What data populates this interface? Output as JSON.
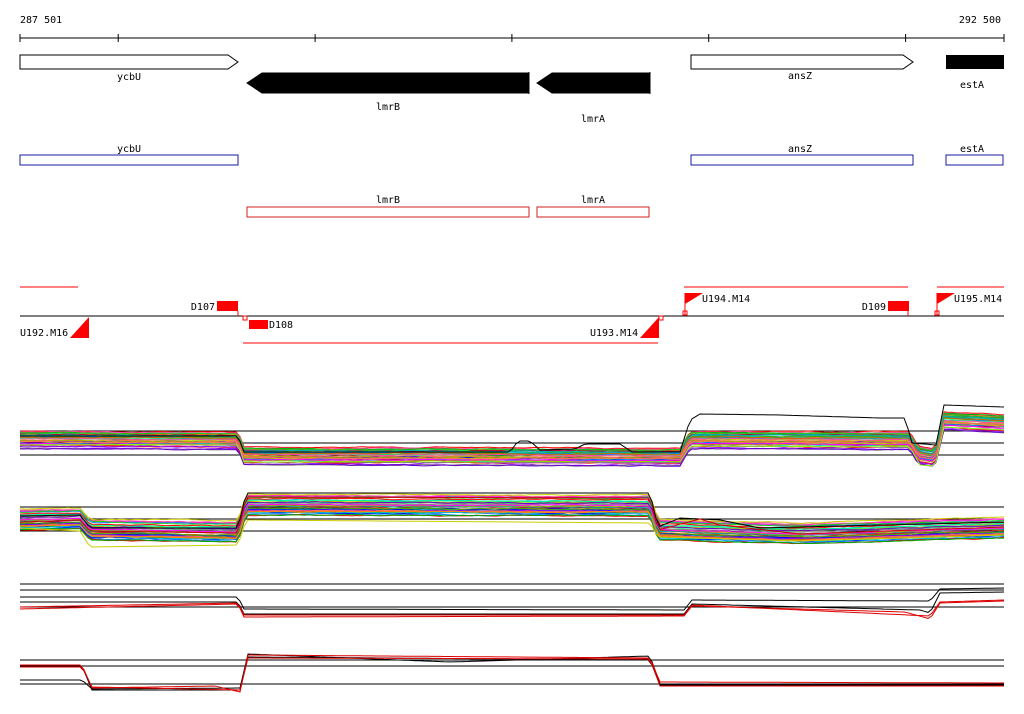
{
  "ruler": {
    "start_label": "287 501",
    "end_label": "292 500",
    "start": 287501,
    "end": 292500
  },
  "genes": [
    {
      "name": "ycbU",
      "start": 287501,
      "end": 288612,
      "strand": "+",
      "partial": false
    },
    {
      "name": "lmrB",
      "start": 288652,
      "end": 290082,
      "strand": "-",
      "partial": false
    },
    {
      "name": "lmrA",
      "start": 290125,
      "end": 290694,
      "strand": "-",
      "partial": false
    },
    {
      "name": "ansZ",
      "start": 290806,
      "end": 291933,
      "strand": "+",
      "partial": false
    },
    {
      "name": "estA",
      "start": 292102,
      "end": 292500,
      "strand": "+",
      "partial": true
    }
  ],
  "features": [
    {
      "label": "D107",
      "type": "down-block"
    },
    {
      "label": "D108",
      "type": "down-block"
    },
    {
      "label": "D109",
      "type": "down-block"
    },
    {
      "label": "U192.M16",
      "type": "up-flag"
    },
    {
      "label": "U193.M14",
      "type": "up-flag"
    },
    {
      "label": "U194.M14",
      "type": "up-flag"
    },
    {
      "label": "U195.M14",
      "type": "up-flag"
    }
  ],
  "colors": {
    "gene_forward": "#ffffff",
    "gene_reverse": "#000000",
    "annotation_forward": "#1a1aa6",
    "annotation_reverse": "#cc2020",
    "feature": "#ff0000",
    "baseline": "#000000"
  },
  "chart_data": {
    "type": "line",
    "panels": [
      {
        "strand": "forward",
        "mode": "tiling-array",
        "lines": 40
      },
      {
        "strand": "reverse",
        "mode": "tiling-array",
        "lines": 40
      },
      {
        "strand": "forward",
        "mode": "summary",
        "lines": 4
      },
      {
        "strand": "reverse",
        "mode": "summary",
        "lines": 4
      }
    ]
  }
}
